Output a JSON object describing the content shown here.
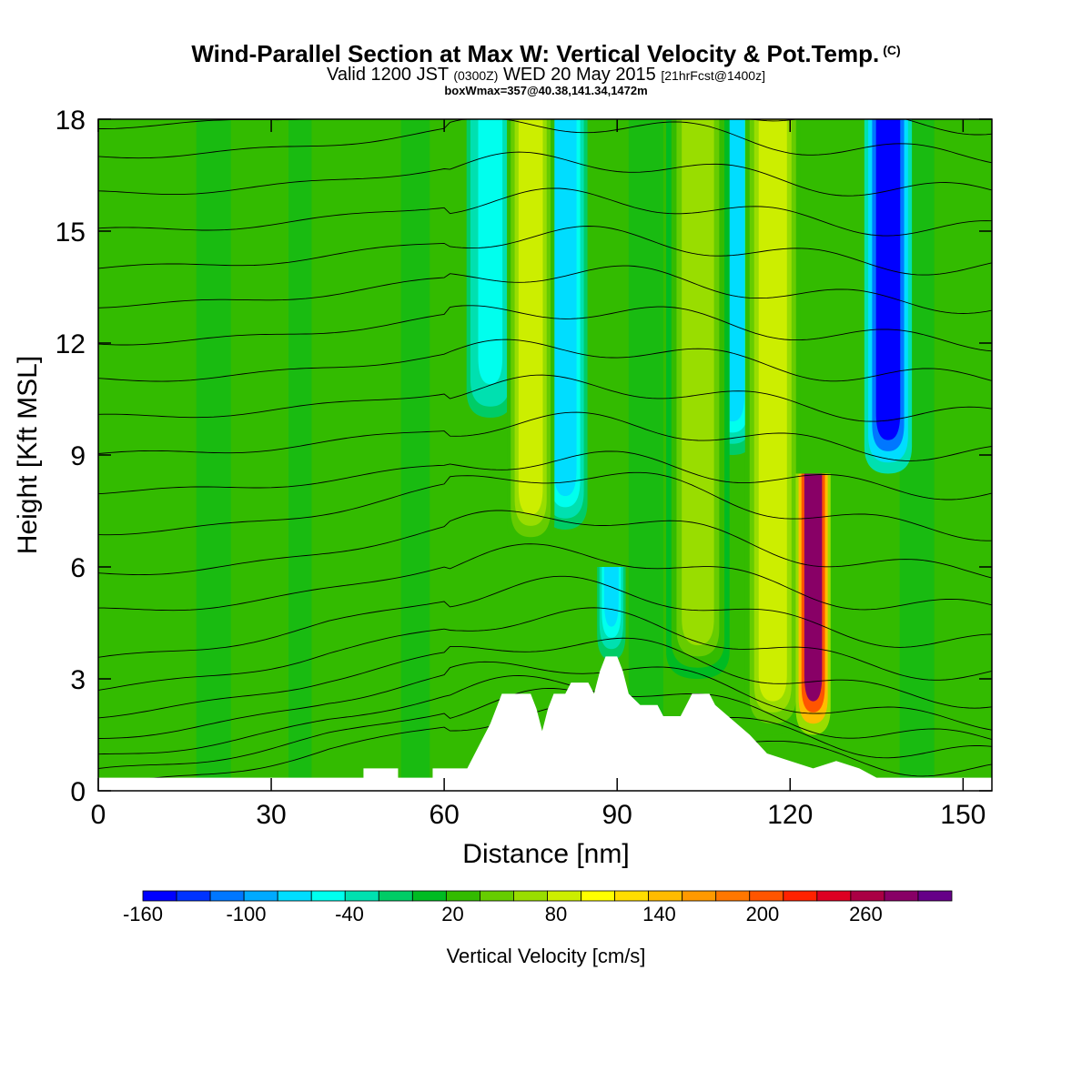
{
  "title": {
    "main": "Wind-Parallel Section at Max W: Vertical Velocity & Pot.Temp.",
    "copyright": "(C)",
    "valid_prefix": "Valid 1200 JST",
    "valid_utc": "(0300Z)",
    "valid_date": "WED 20 May 2015",
    "forecast": "[21hrFcst@1400z]",
    "box": "boxWmax=357@40.38,141.34,1472m"
  },
  "chart_data": {
    "type": "heatmap",
    "title": "Wind-Parallel Section at Max W: Vertical Velocity & Pot.Temp.",
    "xlabel": "Distance [nm]",
    "ylabel": "Height [Kft MSL]",
    "xlim": [
      0,
      155
    ],
    "ylim": [
      0,
      18
    ],
    "xticks": [
      "0",
      "30",
      "60",
      "90",
      "120",
      "150"
    ],
    "yticks": [
      "0",
      "3",
      "6",
      "9",
      "12",
      "15",
      "18"
    ],
    "colorbar": {
      "label": "Vertical Velocity [cm/s]",
      "tick_labels": [
        "-160",
        "-100",
        "-40",
        "20",
        "80",
        "140",
        "200",
        "260"
      ],
      "tick_values": [
        -160,
        -100,
        -40,
        20,
        80,
        140,
        200,
        260
      ],
      "range": [
        -160,
        310
      ],
      "colors": [
        "#0000ff",
        "#0033ff",
        "#0077ff",
        "#00aaff",
        "#00ddff",
        "#00ffee",
        "#00e0b0",
        "#00cc66",
        "#00bb22",
        "#33bb00",
        "#66cc00",
        "#99dd00",
        "#ccee00",
        "#ffff00",
        "#ffdd00",
        "#ffbb00",
        "#ff9900",
        "#ff7700",
        "#ff5500",
        "#ff2200",
        "#dd0022",
        "#aa0044",
        "#880066",
        "#660088"
      ]
    },
    "terrain": [
      [
        0,
        0.35
      ],
      [
        46,
        0.35
      ],
      [
        46,
        0.6
      ],
      [
        52,
        0.6
      ],
      [
        52,
        0.35
      ],
      [
        58,
        0.35
      ],
      [
        58,
        0.6
      ],
      [
        64,
        0.6
      ],
      [
        66,
        1.2
      ],
      [
        68,
        1.8
      ],
      [
        70,
        2.6
      ],
      [
        75,
        2.6
      ],
      [
        76,
        2.2
      ],
      [
        77,
        1.6
      ],
      [
        78,
        2.2
      ],
      [
        79,
        2.6
      ],
      [
        81,
        2.6
      ],
      [
        82,
        2.9
      ],
      [
        85,
        2.9
      ],
      [
        86,
        2.6
      ],
      [
        87,
        3.2
      ],
      [
        88,
        3.6
      ],
      [
        90,
        3.6
      ],
      [
        91,
        3.2
      ],
      [
        92,
        2.6
      ],
      [
        94,
        2.3
      ],
      [
        97,
        2.3
      ],
      [
        98,
        2.0
      ],
      [
        101,
        2.0
      ],
      [
        102,
        2.3
      ],
      [
        103,
        2.6
      ],
      [
        106,
        2.6
      ],
      [
        107,
        2.3
      ],
      [
        110,
        1.9
      ],
      [
        113,
        1.5
      ],
      [
        116,
        1.0
      ],
      [
        120,
        0.8
      ],
      [
        124,
        0.6
      ],
      [
        128,
        0.8
      ],
      [
        132,
        0.6
      ],
      [
        135,
        0.35
      ],
      [
        155,
        0.35
      ]
    ],
    "updrafts": [
      {
        "x": 75,
        "w": 3,
        "top": 18,
        "bottom": 6.5,
        "value": 80
      },
      {
        "x": 104,
        "w": 4,
        "top": 18,
        "bottom": 3,
        "value": 60
      },
      {
        "x": 117,
        "w": 3.5,
        "top": 18,
        "bottom": 1.5,
        "value": 90
      },
      {
        "x": 124,
        "w": 2.2,
        "top": 8.5,
        "bottom": 1.5,
        "value": 280
      }
    ],
    "downdrafts": [
      {
        "x": 81,
        "w": 2.8,
        "top": 18,
        "bottom": 7,
        "value": -80
      },
      {
        "x": 89,
        "w": 1.8,
        "top": 6,
        "bottom": 3.5,
        "value": -70
      },
      {
        "x": 110,
        "w": 3,
        "top": 18,
        "bottom": 9,
        "value": -70
      },
      {
        "x": 137,
        "w": 3,
        "top": 18,
        "bottom": 8.5,
        "value": -150
      },
      {
        "x": 68,
        "w": 3,
        "top": 18,
        "bottom": 10,
        "value": -50
      }
    ],
    "isentropes_kft": [
      0.5,
      0.9,
      1.3,
      1.8,
      2.4,
      3.1,
      3.9,
      4.8,
      5.8,
      6.9,
      8.0,
      9.0,
      10.0,
      11.0,
      12.0,
      13.0,
      14.0,
      15.0,
      16.0,
      17.0,
      17.8
    ]
  }
}
